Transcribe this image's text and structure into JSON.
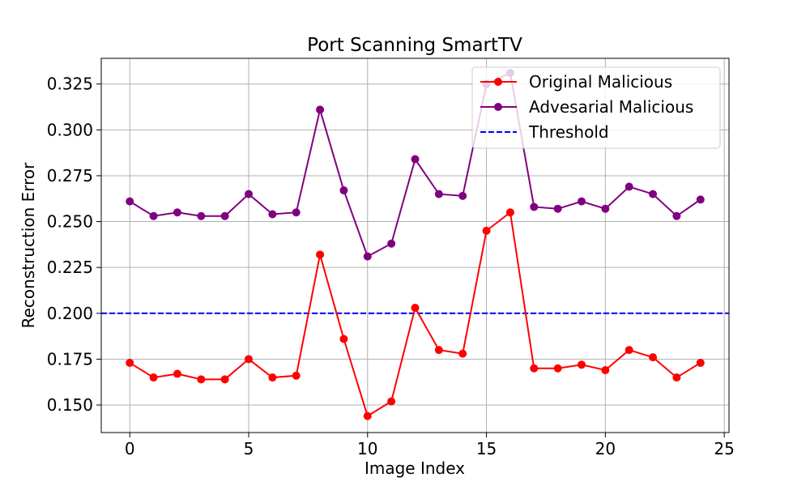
{
  "chart_data": {
    "type": "line",
    "title": "Port Scanning SmartTV",
    "xlabel": "Image Index",
    "ylabel": "Reconstruction Error",
    "xlim": [
      -1.2,
      25.2
    ],
    "ylim": [
      0.135,
      0.339
    ],
    "xticks": [
      0,
      5,
      10,
      15,
      20,
      25
    ],
    "yticks": [
      0.15,
      0.175,
      0.2,
      0.225,
      0.25,
      0.275,
      0.3,
      0.325
    ],
    "grid": true,
    "legend_position": "top-right",
    "x": [
      0,
      1,
      2,
      3,
      4,
      5,
      6,
      7,
      8,
      9,
      10,
      11,
      12,
      13,
      14,
      15,
      16,
      17,
      18,
      19,
      20,
      21,
      22,
      23,
      24
    ],
    "series": [
      {
        "name": "Original Malicious",
        "color": "#ff0000",
        "values": [
          0.173,
          0.165,
          0.167,
          0.164,
          0.164,
          0.175,
          0.165,
          0.166,
          0.232,
          0.186,
          0.144,
          0.152,
          0.203,
          0.18,
          0.178,
          0.245,
          0.255,
          0.17,
          0.17,
          0.172,
          0.169,
          0.18,
          0.176,
          0.165,
          0.173
        ]
      },
      {
        "name": "Advesarial Malicious",
        "color": "#800080",
        "values": [
          0.261,
          0.253,
          0.255,
          0.253,
          0.253,
          0.265,
          0.254,
          0.255,
          0.311,
          0.267,
          0.231,
          0.238,
          0.284,
          0.265,
          0.264,
          0.325,
          0.331,
          0.258,
          0.257,
          0.261,
          0.257,
          0.269,
          0.265,
          0.253,
          0.262
        ]
      }
    ],
    "threshold": {
      "name": "Threshold",
      "value": 0.2,
      "color": "#0000ff"
    }
  }
}
